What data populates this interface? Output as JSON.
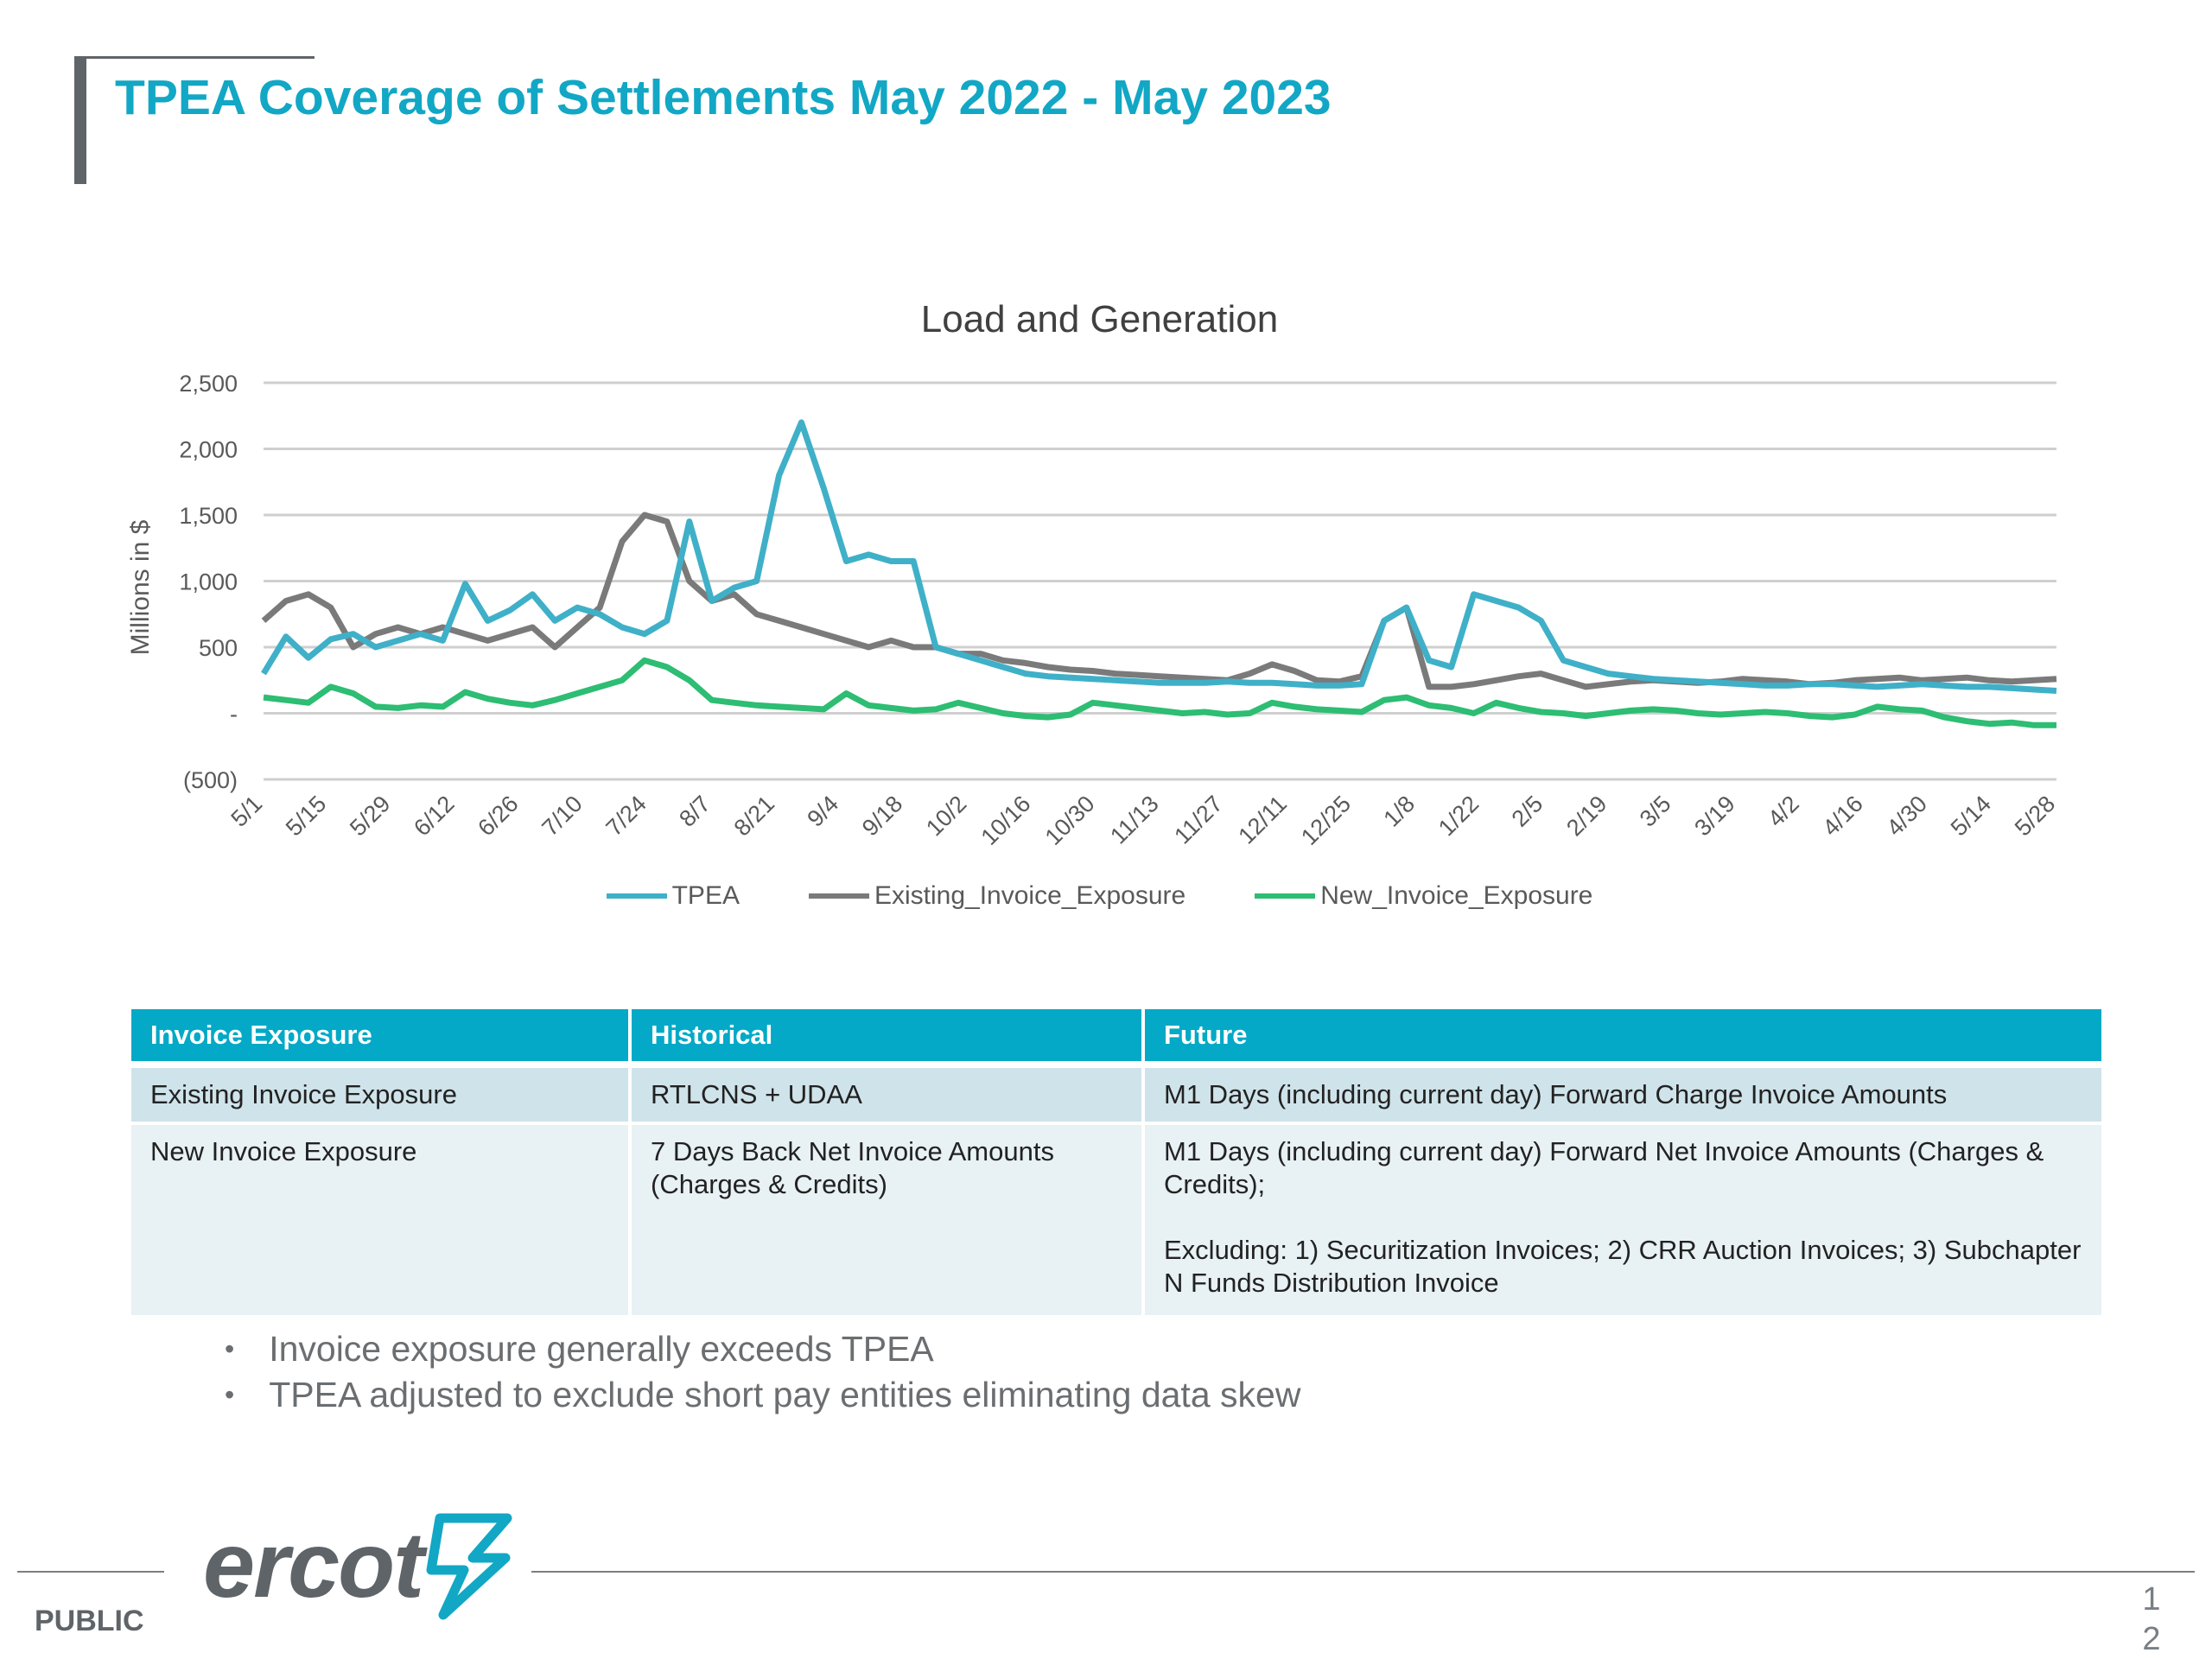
{
  "header": {
    "title": "TPEA Coverage of Settlements May 2022 -  May 2023"
  },
  "chart_data": {
    "type": "line",
    "title": "Load and Generation",
    "ylabel": "Millions in $",
    "ylim": [
      -500,
      2500
    ],
    "yticks": [
      2500,
      2000,
      1500,
      1000,
      500,
      0,
      -500
    ],
    "ytick_labels": [
      "2,500",
      "2,000",
      "1,500",
      "1,000",
      "500",
      "-",
      "(500)"
    ],
    "xticks": [
      "5/1",
      "5/15",
      "5/29",
      "6/12",
      "6/26",
      "7/10",
      "7/24",
      "8/7",
      "8/21",
      "9/4",
      "9/18",
      "10/2",
      "10/16",
      "10/30",
      "11/13",
      "11/27",
      "12/11",
      "12/25",
      "1/8",
      "1/22",
      "2/5",
      "2/19",
      "3/5",
      "3/19",
      "4/2",
      "4/16",
      "4/30",
      "5/14",
      "5/28"
    ],
    "grid": true,
    "legend_position": "bottom",
    "series": [
      {
        "name": "TPEA",
        "color": "#3fb0c8",
        "values": [
          300,
          580,
          420,
          560,
          600,
          500,
          550,
          600,
          550,
          980,
          700,
          780,
          900,
          700,
          800,
          750,
          650,
          600,
          700,
          1450,
          850,
          950,
          1000,
          1800,
          2200,
          1700,
          1150,
          1200,
          1150,
          1150,
          500,
          450,
          400,
          350,
          300,
          280,
          270,
          260,
          250,
          240,
          230,
          230,
          230,
          240,
          230,
          230,
          220,
          210,
          210,
          220,
          700,
          800,
          400,
          350,
          900,
          850,
          800,
          700,
          400,
          350,
          300,
          280,
          260,
          250,
          240,
          230,
          220,
          210,
          210,
          220,
          220,
          210,
          200,
          210,
          220,
          210,
          200,
          200,
          190,
          180,
          170
        ]
      },
      {
        "name": "Existing_Invoice_Exposure",
        "color": "#7a7a7a",
        "values": [
          700,
          850,
          900,
          800,
          500,
          600,
          650,
          600,
          650,
          600,
          550,
          600,
          650,
          500,
          650,
          800,
          1300,
          1500,
          1450,
          1000,
          850,
          900,
          750,
          700,
          650,
          600,
          550,
          500,
          550,
          500,
          500,
          450,
          450,
          400,
          380,
          350,
          330,
          320,
          300,
          290,
          280,
          270,
          260,
          250,
          300,
          370,
          320,
          250,
          240,
          280,
          700,
          800,
          200,
          200,
          220,
          250,
          280,
          300,
          250,
          200,
          220,
          240,
          250,
          240,
          230,
          240,
          260,
          250,
          240,
          220,
          230,
          250,
          260,
          270,
          250,
          260,
          270,
          250,
          240,
          250,
          260
        ]
      },
      {
        "name": "New_Invoice_Exposure",
        "color": "#2dbd73",
        "values": [
          120,
          100,
          80,
          200,
          150,
          50,
          40,
          60,
          50,
          160,
          110,
          80,
          60,
          100,
          150,
          200,
          250,
          400,
          350,
          250,
          100,
          80,
          60,
          50,
          40,
          30,
          150,
          60,
          40,
          20,
          30,
          80,
          40,
          0,
          -20,
          -30,
          -10,
          80,
          60,
          40,
          20,
          0,
          10,
          -10,
          0,
          80,
          50,
          30,
          20,
          10,
          100,
          120,
          60,
          40,
          0,
          80,
          40,
          10,
          0,
          -20,
          0,
          20,
          30,
          20,
          0,
          -10,
          0,
          10,
          0,
          -20,
          -30,
          -10,
          50,
          30,
          20,
          -30,
          -60,
          -80,
          -70,
          -90,
          -90
        ]
      }
    ]
  },
  "table": {
    "headers": [
      "Invoice Exposure",
      "Historical",
      "Future"
    ],
    "row1": [
      "Existing Invoice Exposure",
      "RTLCNS + UDAA",
      "M1 Days (including current day) Forward Charge Invoice Amounts"
    ],
    "row2": {
      "c1": "New Invoice Exposure",
      "c2": "7 Days Back Net Invoice Amounts (Charges & Credits)",
      "c3a": "M1 Days (including current day) Forward Net Invoice Amounts (Charges & Credits);",
      "c3b": "Excluding: 1) Securitization Invoices; 2) CRR Auction Invoices; 3) Subchapter N Funds Distribution Invoice"
    }
  },
  "bullets": [
    "Invoice exposure generally exceeds TPEA",
    "TPEA adjusted to exclude short pay entities eliminating data skew"
  ],
  "footer": {
    "logo_text": "ercot",
    "public_label": "PUBLIC",
    "page_number_line1": "1",
    "page_number_line2": "2"
  }
}
